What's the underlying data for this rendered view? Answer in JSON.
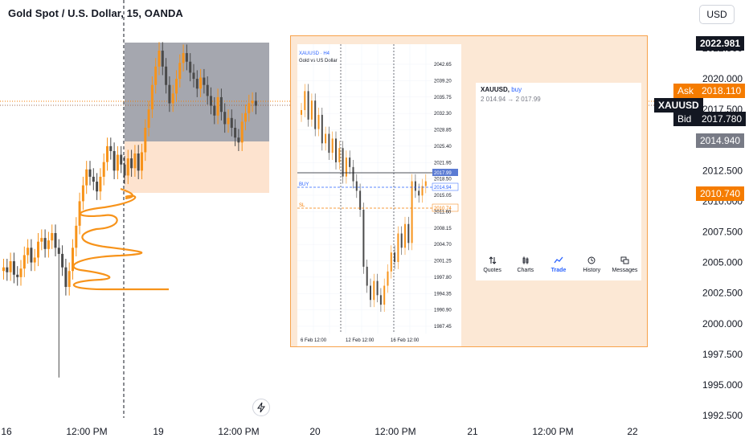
{
  "header": {
    "title": "Gold Spot / U.S. Dollar, 15, OANDA",
    "currency_button": "USD"
  },
  "price_labels": {
    "top_price": "2022.981",
    "ask_label": "Ask",
    "ask_price": "2018.110",
    "symbol": "XAUUSD",
    "bid_label": "Bid",
    "bid_price": "2017.780",
    "gray_price": "2014.940",
    "orange_price": "2010.740"
  },
  "colors": {
    "up_candle": "#f7931a",
    "down_candle": "#4a4a4a",
    "orange_accent": "#f57c00",
    "gray_zone": "#9598a1",
    "peach_zone": "#fde3cf",
    "buy_blue": "#2962ff"
  },
  "chart_data": {
    "type": "candlestick",
    "title": "Gold Spot / U.S. Dollar, 15, OANDA",
    "y_axis": {
      "ticks": [
        "2022.500",
        "2020.000",
        "2017.500",
        "2015.000",
        "2012.500",
        "2010.000",
        "2007.500",
        "2005.000",
        "2002.500",
        "2000.000",
        "1997.500",
        "1995.000",
        "1992.500"
      ],
      "range": [
        1992.5,
        2023.0
      ]
    },
    "x_axis": {
      "ticks": [
        "16",
        "12:00 PM",
        "19",
        "12:00 PM",
        "20",
        "12:00 PM",
        "21",
        "12:00 PM",
        "22"
      ]
    },
    "zones": [
      {
        "name": "gray_box",
        "from": 2014.94,
        "to": 2022.98
      },
      {
        "name": "orange_box",
        "from": 2010.74,
        "to": 2014.94
      }
    ],
    "levels": {
      "ask": 2018.11,
      "bid": 2017.78
    },
    "closes": [
      2004.6,
      2004.2,
      2005.1,
      2004.0,
      2003.8,
      2004.5,
      2005.6,
      2006.2,
      2005.0,
      2005.4,
      2006.7,
      2007.0,
      2006.1,
      2006.8,
      2007.4,
      2006.2,
      2005.7,
      2004.6,
      2003.0,
      2004.3,
      2006.2,
      2008.0,
      2010.0,
      2011.3,
      2012.6,
      2012.0,
      2011.6,
      2010.8,
      2012.0,
      2013.2,
      2014.5,
      2014.1,
      2012.5,
      2013.8,
      2013.0,
      2012.1,
      2013.5,
      2012.7,
      2013.9,
      2012.5,
      2014.0,
      2016.0,
      2017.5,
      2019.5,
      2021.0,
      2022.3,
      2021.0,
      2019.5,
      2018.0,
      2018.8,
      2020.0,
      2021.3,
      2022.1,
      2021.4,
      2020.5,
      2020.0,
      2019.2,
      2020.1,
      2019.5,
      2018.6,
      2017.8,
      2017.0,
      2018.5,
      2017.3,
      2016.3,
      2016.8,
      2016.0,
      2015.2,
      2014.8,
      2016.5,
      2017.2,
      2018.0,
      2018.2,
      2017.8
    ],
    "lows": [
      {
        "index": 16,
        "value": 1995.6
      }
    ],
    "inset": {
      "symbol": "XAUUSD",
      "timeframe": "H4",
      "subtitle": "Gold vs US Dollar",
      "y_ticks": [
        "2042.65",
        "2039.20",
        "2035.75",
        "2032.30",
        "2028.85",
        "2025.40",
        "2021.95",
        "2018.50",
        "2015.05",
        "2011.60",
        "2008.15",
        "2004.70",
        "2001.25",
        "1997.80",
        "1994.35",
        "1990.90",
        "1987.45"
      ],
      "x_ticks": [
        "6 Feb 12:00",
        "12 Feb 12:00",
        "16 Feb 12:00"
      ],
      "current": "2017.99",
      "buy_label": "BUY",
      "buy_price": "2014.94",
      "sl_label": "SL",
      "sl_price": "2010.74",
      "closes": [
        2033,
        2037,
        2031,
        2035,
        2029,
        2032,
        2026,
        2028,
        2024,
        2027,
        2022,
        2025,
        2019,
        2023,
        2021,
        2018,
        2016,
        2012,
        2000,
        1996,
        1993,
        1997,
        1994,
        1992,
        1996,
        1999,
        2003,
        2001,
        2007,
        2004,
        2009,
        2005,
        2018,
        2016,
        2015,
        2017,
        2018
      ]
    }
  },
  "position": {
    "symbol": "XAUUSD",
    "side": "buy",
    "prices": "2 014.94 → 2 017.99"
  },
  "nav": {
    "items": [
      {
        "label": "Quotes",
        "icon": "quotes-icon"
      },
      {
        "label": "Charts",
        "icon": "charts-icon"
      },
      {
        "label": "Trade",
        "icon": "trade-icon"
      },
      {
        "label": "History",
        "icon": "history-icon"
      },
      {
        "label": "Messages",
        "icon": "messages-icon"
      }
    ]
  }
}
